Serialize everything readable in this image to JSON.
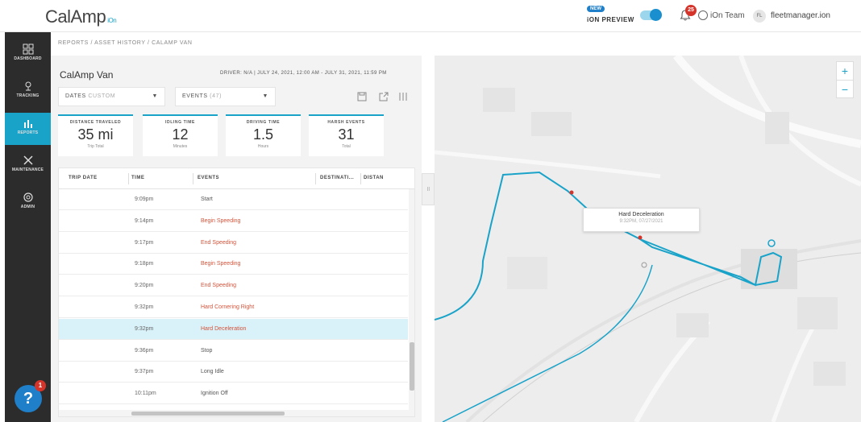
{
  "header": {
    "logo_text": "CalAmp",
    "logo_sub": "iOn",
    "new_badge": "NEW",
    "ion_preview_label": "iON PREVIEW",
    "notification_count": "25",
    "team_label": "iOn Team",
    "user_initials": "FL",
    "user_label": "fleetmanager.ion"
  },
  "sidebar": {
    "items": [
      {
        "label": "DASHBOARD",
        "icon": "dashboard-icon"
      },
      {
        "label": "TRACKING",
        "icon": "tracking-icon"
      },
      {
        "label": "REPORTS",
        "icon": "reports-icon"
      },
      {
        "label": "MAINTENANCE",
        "icon": "maintenance-icon"
      },
      {
        "label": "ADMIN",
        "icon": "admin-icon"
      }
    ],
    "help_label": "?",
    "help_count": "1"
  },
  "breadcrumb": "REPORTS / ASSET HISTORY / CALAMP VAN",
  "asset": {
    "title": "CalAmp Van",
    "driver_info": "DRIVER: N/A  |  JULY 24, 2021, 12:00 AM - JULY 31, 2021, 11:59 PM"
  },
  "filters": {
    "dates_label": "DATES",
    "dates_value": "CUSTOM",
    "events_label": "EVENTS",
    "events_value": "(47)"
  },
  "stats": [
    {
      "title": "DISTANCE TRAVELED",
      "value": "35 mi",
      "unit": "Trip Total"
    },
    {
      "title": "IDLING TIME",
      "value": "12",
      "unit": "Minutes"
    },
    {
      "title": "DRIVING TIME",
      "value": "1.5",
      "unit": "Hours"
    },
    {
      "title": "HARSH EVENTS",
      "value": "31",
      "unit": "Total"
    }
  ],
  "table": {
    "columns": [
      "TRIP DATE",
      "TIME",
      "EVENTS",
      "DESTINATI...",
      "DISTAN"
    ],
    "rows": [
      {
        "time": "9:09pm",
        "event": "Start",
        "alert": false
      },
      {
        "time": "9:14pm",
        "event": "Begin Speeding",
        "alert": true
      },
      {
        "time": "9:17pm",
        "event": "End Speeding",
        "alert": true
      },
      {
        "time": "9:18pm",
        "event": "Begin Speeding",
        "alert": true
      },
      {
        "time": "9:20pm",
        "event": "End Speeding",
        "alert": true
      },
      {
        "time": "9:32pm",
        "event": "Hard Cornering Right",
        "alert": true
      },
      {
        "time": "9:32pm",
        "event": "Hard Deceleration",
        "alert": true
      },
      {
        "time": "9:36pm",
        "event": "Stop",
        "alert": false
      },
      {
        "time": "9:37pm",
        "event": "Long Idle",
        "alert": false
      },
      {
        "time": "10:11pm",
        "event": "Ignition Off",
        "alert": false
      }
    ]
  },
  "map": {
    "popup_title": "Hard Deceleration",
    "popup_sub": "9:32PM, 07/27/2021",
    "zoom_in": "+",
    "zoom_out": "−",
    "route_color": "#1aa3c9"
  },
  "colors": {
    "accent": "#1aa3c9",
    "sidebar_bg": "#2c2c2c",
    "alert_text": "#d4533a",
    "badge_red": "#d4342a"
  }
}
